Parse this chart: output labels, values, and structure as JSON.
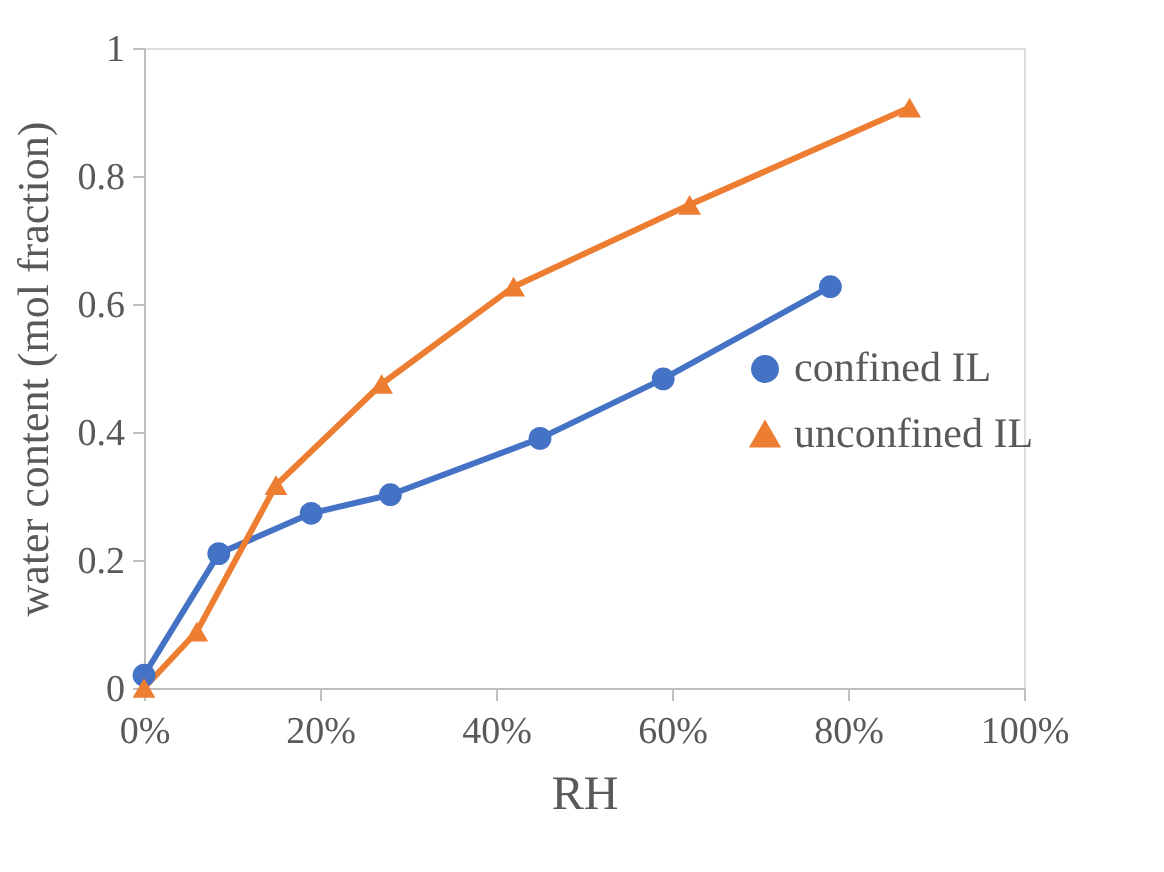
{
  "chart_data": {
    "type": "line",
    "xlabel": "RH",
    "ylabel": "water content (mol fraction)",
    "xlim": [
      0,
      100
    ],
    "xticks": [
      {
        "value": 0,
        "label": "0%"
      },
      {
        "value": 20,
        "label": "20%"
      },
      {
        "value": 40,
        "label": "40%"
      },
      {
        "value": 60,
        "label": "60%"
      },
      {
        "value": 80,
        "label": "80%"
      },
      {
        "value": 100,
        "label": "100%"
      }
    ],
    "ylim": [
      0,
      1
    ],
    "yticks": [
      0,
      {
        "value": 0.2,
        "label": "0.2"
      },
      {
        "value": 0.4,
        "label": "0.4"
      },
      {
        "value": 0.6,
        "label": "0.6"
      },
      {
        "value": 0.8,
        "label": "0.8"
      },
      1
    ],
    "grid": false,
    "legend": "right",
    "line_style": "solid",
    "series": [
      {
        "name": "confined IL",
        "color": "#4472c4",
        "marker": "circle",
        "x": [
          0,
          8.5,
          19,
          28,
          45,
          59,
          78
        ],
        "values": [
          0.02,
          0.21,
          0.273,
          0.302,
          0.39,
          0.483,
          0.627
        ]
      },
      {
        "name": "unconfined IL",
        "color": "#ed7d31",
        "marker": "triangle",
        "x": [
          0,
          6,
          15,
          27,
          42,
          62,
          87
        ],
        "values": [
          0,
          0.088,
          0.317,
          0.475,
          0.627,
          0.755,
          0.907
        ]
      }
    ]
  }
}
